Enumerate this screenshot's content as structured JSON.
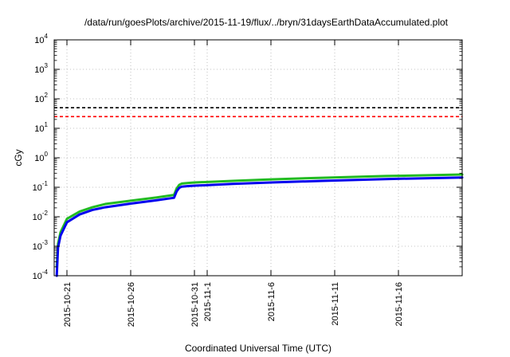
{
  "chart_data": {
    "type": "line",
    "title": "/data/run/goesPlots/archive/2015-11-19/flux/../bryn/31daysEarthDataAccumulated.plot",
    "xlabel": "Coordinated Universal Time (UTC)",
    "ylabel": "cGy",
    "y_scale": "log",
    "ylim_exponents": [
      -4,
      4
    ],
    "y_tick_labels": [
      {
        "base": "10",
        "exp": "-4"
      },
      {
        "base": "10",
        "exp": "-3"
      },
      {
        "base": "10",
        "exp": "-2"
      },
      {
        "base": "10",
        "exp": "-1"
      },
      {
        "base": "10",
        "exp": "0"
      },
      {
        "base": "10",
        "exp": "1"
      },
      {
        "base": "10",
        "exp": "2"
      },
      {
        "base": "10",
        "exp": "3"
      },
      {
        "base": "10",
        "exp": "4"
      }
    ],
    "x_range_days": [
      -1.0,
      31.0
    ],
    "x_ticks": [
      {
        "label": "2015-10-21",
        "day": 0
      },
      {
        "label": "2015-10-26",
        "day": 5
      },
      {
        "label": "2015-10-31",
        "day": 10
      },
      {
        "label": "2015-11-1",
        "day": 11
      },
      {
        "label": "2015-11-6",
        "day": 16
      },
      {
        "label": "2015-11-11",
        "day": 21
      },
      {
        "label": "2015-11-16",
        "day": 26
      }
    ],
    "grid": true,
    "reference_lines": [
      {
        "value": 50,
        "color": "#000000",
        "style": "dashed"
      },
      {
        "value": 25,
        "color": "#ff0000",
        "style": "dashed"
      }
    ],
    "series": [
      {
        "color": "#22bb22",
        "x": [
          -0.8,
          -0.7,
          -0.5,
          0.0,
          1.0,
          2.0,
          3.0,
          5.0,
          7.0,
          8.4,
          8.6,
          8.8,
          9.0,
          9.5,
          10.0,
          13.0,
          16.0,
          20.0,
          25.0,
          31.0
        ],
        "y": [
          0.0002,
          0.0012,
          0.003,
          0.0085,
          0.015,
          0.021,
          0.027,
          0.035,
          0.045,
          0.055,
          0.09,
          0.12,
          0.133,
          0.14,
          0.145,
          0.165,
          0.185,
          0.21,
          0.24,
          0.27
        ]
      },
      {
        "color": "#0000ee",
        "x": [
          -0.8,
          -0.7,
          -0.5,
          0.0,
          1.0,
          2.0,
          3.0,
          5.0,
          7.0,
          8.4,
          8.6,
          8.8,
          9.0,
          9.5,
          10.0,
          13.0,
          16.0,
          20.0,
          25.0,
          31.0
        ],
        "y": [
          0.0001,
          0.0009,
          0.0023,
          0.0065,
          0.012,
          0.017,
          0.021,
          0.028,
          0.036,
          0.044,
          0.072,
          0.095,
          0.105,
          0.11,
          0.113,
          0.13,
          0.145,
          0.165,
          0.19,
          0.215
        ]
      }
    ]
  }
}
